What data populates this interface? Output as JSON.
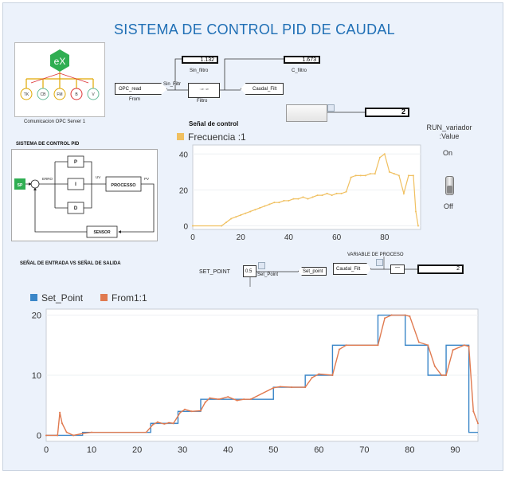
{
  "title": "SISTEMA DE CONTROL PID DE CAUDAL",
  "opc": {
    "logo_text": "eX",
    "node_labels": [
      "TK",
      "CB",
      "FM",
      "B",
      "V"
    ],
    "caption": "Comunicacion OPC Server 1"
  },
  "blocks": {
    "opc_read": "OPC_read",
    "from_label": "From",
    "sin_filtr_signal": "Sin_Filtr",
    "filtro_label": "Filtro",
    "sin_filtro_value": "1.132",
    "sin_filtro_label": "Sin_filtro",
    "c_filtro_value": "1.673",
    "c_filtro_label": "C_filtro",
    "caudal_filt": "Caudal_Filt",
    "display_value": "2",
    "set_point_label": "SET_POINT",
    "set_point_value": "0.5",
    "set_point_block": "Set_Point",
    "set_point_goto": "Set_point",
    "var_proceso_label": "VARIABLE DE PROCESO",
    "caudal_filt2": "Caudal_Filt",
    "pv_value": "2"
  },
  "pid_diagram": {
    "title": "SISTEMA DE CONTROL PID",
    "sp": "SP",
    "error": "ERRO",
    "p": "P",
    "i": "I",
    "d": "D",
    "uv": "UV",
    "process": "PROCESSO",
    "pv": "PV",
    "sensor": "SENSOR"
  },
  "switch": {
    "label": "RUN_variador\n:Value",
    "on": "On",
    "off": "Off"
  },
  "section_label": "SEÑAL DE ENTRADA VS SEÑAL DE SALIDA",
  "chart_data": [
    {
      "type": "line",
      "title": "Señal de control",
      "xlim": [
        0,
        95
      ],
      "ylim": [
        -2,
        45
      ],
      "xticks": [
        0,
        20,
        40,
        60,
        80
      ],
      "yticks": [
        0,
        20,
        40
      ],
      "legend_placement": "top-left",
      "series": [
        {
          "name": "Frecuencia :1",
          "color": "#f0c060",
          "x": [
            0,
            12,
            14,
            16,
            18,
            20,
            22,
            24,
            26,
            28,
            30,
            32,
            34,
            36,
            38,
            40,
            42,
            44,
            46,
            48,
            50,
            52,
            54,
            56,
            58,
            60,
            62,
            64,
            66,
            68,
            70,
            72,
            74,
            76,
            78,
            80,
            82,
            84,
            86,
            88,
            90,
            92,
            93,
            94
          ],
          "y": [
            0,
            0,
            2,
            4,
            5,
            6,
            7,
            8,
            9,
            10,
            11,
            12,
            13,
            13,
            14,
            14,
            15,
            15,
            16,
            15,
            16,
            17,
            17,
            18,
            17,
            18,
            18,
            19,
            27,
            28,
            28,
            28,
            29,
            29,
            38,
            40,
            30,
            29,
            28,
            18,
            28,
            28,
            8,
            0
          ]
        }
      ]
    },
    {
      "type": "line",
      "xlim": [
        0,
        95
      ],
      "ylim": [
        -1,
        21
      ],
      "xticks": [
        0,
        10,
        20,
        30,
        40,
        50,
        60,
        70,
        80,
        90
      ],
      "yticks": [
        0,
        10,
        20
      ],
      "legend_placement": "top-left",
      "series": [
        {
          "name": "Set_Point",
          "color": "#3a86c8",
          "step": true,
          "x": [
            0,
            8,
            23,
            26,
            29,
            34,
            42,
            50,
            57,
            63,
            73,
            79,
            84,
            88,
            93,
            95
          ],
          "y": [
            0,
            0.5,
            2,
            2,
            4,
            6,
            6,
            8,
            10,
            15,
            20,
            15,
            10,
            15,
            0.5,
            0.5
          ]
        },
        {
          "name": "From1:1",
          "color": "#e07a50",
          "x": [
            0,
            2.5,
            3,
            3.5,
            4.5,
            6,
            8,
            10,
            22,
            23.5,
            24.5,
            26,
            27,
            28,
            29.5,
            30.5,
            32,
            34,
            35,
            36,
            38,
            40,
            42,
            43.5,
            45,
            50,
            51.5,
            54,
            57,
            58.5,
            60,
            63,
            64.5,
            66,
            73,
            74.5,
            76,
            79,
            80,
            82,
            84,
            85.5,
            87,
            88,
            89.5,
            92,
            93,
            94,
            95
          ],
          "y": [
            0,
            0,
            3.8,
            2,
            0.5,
            0,
            0.3,
            0.5,
            0.5,
            1.8,
            2.2,
            1.9,
            2.1,
            2,
            3.8,
            4.3,
            4,
            4.1,
            5.5,
            6.2,
            6,
            6.4,
            5.8,
            6,
            6,
            7.9,
            8.1,
            8,
            8,
            9.6,
            10.2,
            10,
            14.3,
            15,
            15,
            19.5,
            20,
            20,
            19.8,
            15.5,
            15,
            11.5,
            10,
            10,
            14.2,
            15,
            14.8,
            4,
            2
          ]
        }
      ]
    }
  ]
}
